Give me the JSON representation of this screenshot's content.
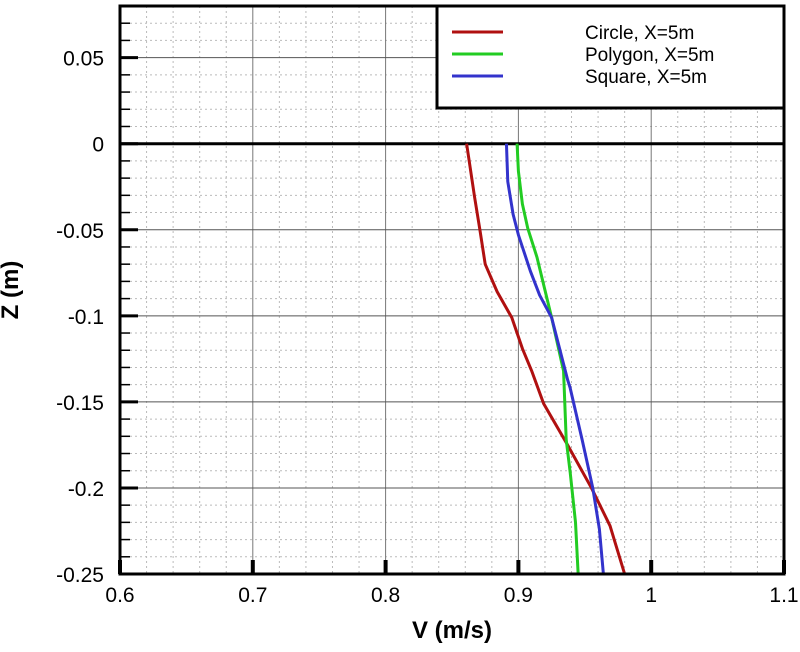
{
  "chart_data": {
    "type": "line",
    "title": "",
    "xlabel": "V (m/s)",
    "ylabel": "Z (m)",
    "xlim": [
      0.6,
      1.1
    ],
    "ylim": [
      -0.25,
      0.08
    ],
    "xticks": [
      "0.6",
      "0.7",
      "0.8",
      "0.9",
      "1",
      "1.1"
    ],
    "yticks": [
      "0.05",
      "0",
      "-0.05",
      "-0.1",
      "-0.15",
      "-0.2",
      "-0.25"
    ],
    "grid": true,
    "legend_position": "top-right",
    "series": [
      {
        "name": "Circle, X=5m",
        "color": "#b01010",
        "x": [
          0.861,
          0.867,
          0.871,
          0.875,
          0.884,
          0.895,
          0.903,
          0.91,
          0.919,
          0.937,
          0.955,
          0.969,
          0.98
        ],
        "y": [
          0,
          -0.031,
          -0.05,
          -0.07,
          -0.086,
          -0.101,
          -0.119,
          -0.132,
          -0.151,
          -0.175,
          -0.2,
          -0.222,
          -0.25
        ]
      },
      {
        "name": "Polygon, X=5m",
        "color": "#22cc22",
        "x": [
          0.899,
          0.9,
          0.903,
          0.907,
          0.914,
          0.925,
          0.934,
          0.936,
          0.939,
          0.943,
          0.945
        ],
        "y": [
          0,
          -0.016,
          -0.035,
          -0.049,
          -0.066,
          -0.101,
          -0.132,
          -0.172,
          -0.191,
          -0.22,
          -0.25
        ]
      },
      {
        "name": "Square, X=5m",
        "color": "#3333cc",
        "x": [
          0.891,
          0.892,
          0.896,
          0.9,
          0.909,
          0.916,
          0.925,
          0.937,
          0.939,
          0.948,
          0.956,
          0.961,
          0.964
        ],
        "y": [
          0,
          -0.022,
          -0.041,
          -0.053,
          -0.074,
          -0.088,
          -0.101,
          -0.137,
          -0.142,
          -0.172,
          -0.2,
          -0.224,
          -0.25
        ]
      }
    ]
  }
}
